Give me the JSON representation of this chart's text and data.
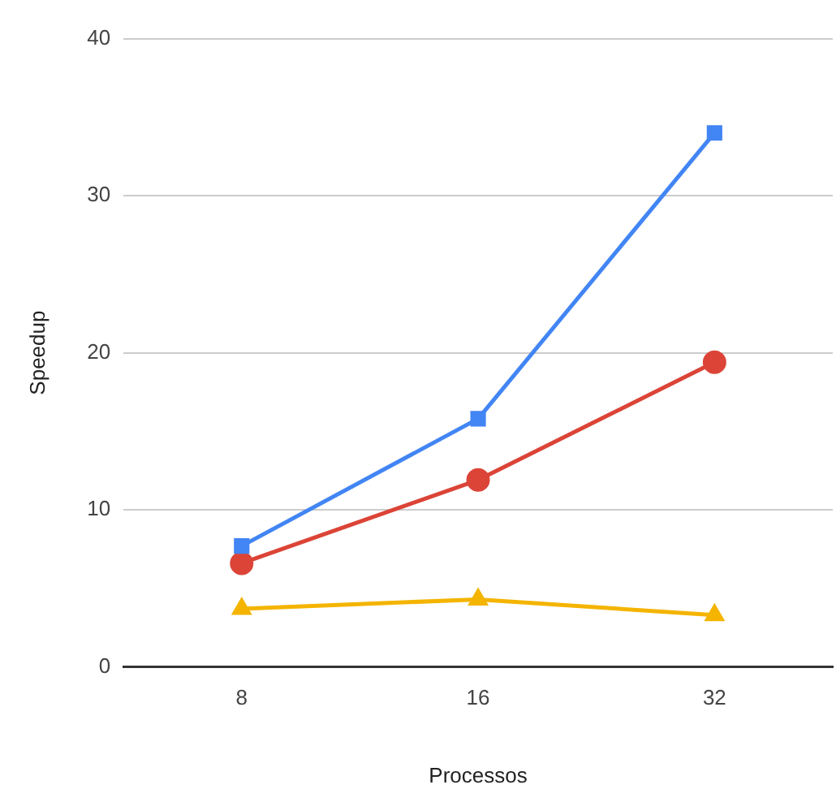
{
  "chart_data": {
    "type": "line",
    "xlabel": "Processos",
    "ylabel": "Speedup",
    "categories": [
      "8",
      "16",
      "32"
    ],
    "series": [
      {
        "color": "#4285f4",
        "marker": "square",
        "values": [
          7.7,
          15.8,
          34.0
        ]
      },
      {
        "color": "#db4437",
        "marker": "circle",
        "values": [
          6.6,
          11.9,
          19.4
        ]
      },
      {
        "color": "#f4b400",
        "marker": "triangle",
        "values": [
          3.7,
          4.3,
          3.3
        ]
      }
    ],
    "ylim": [
      0,
      40
    ],
    "yticks": [
      0,
      10,
      20,
      30,
      40
    ],
    "grid": "y",
    "line_style": "solid"
  }
}
